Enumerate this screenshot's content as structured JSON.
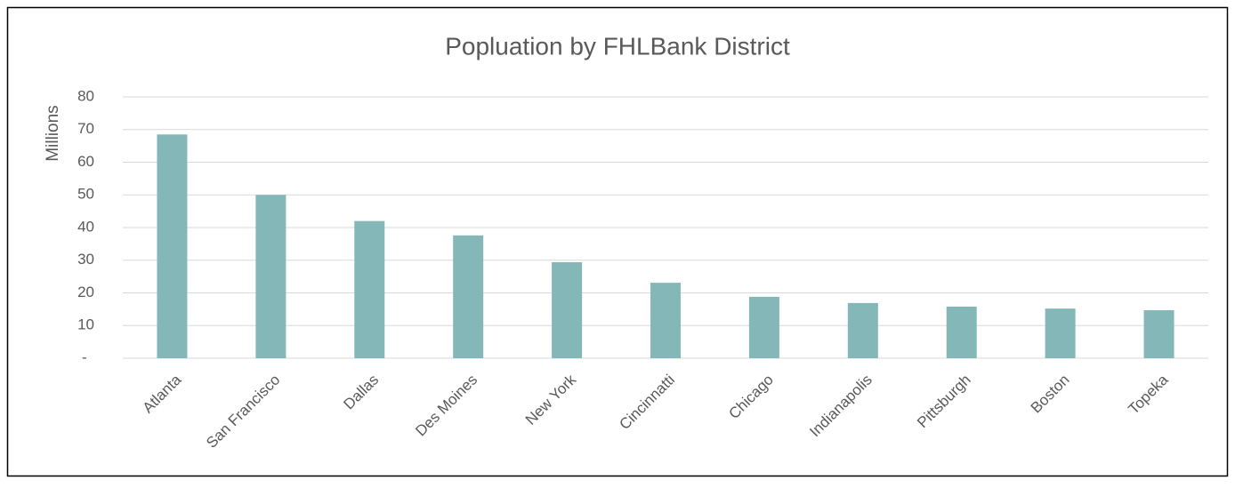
{
  "chart_data": {
    "type": "bar",
    "title": "Popluation by FHLBank District",
    "y_label": "Millions",
    "categories": [
      "Atlanta",
      "San Francisco",
      "Dallas",
      "Des Moines",
      "New York",
      "Cincinnatti",
      "Chicago",
      "Indianapolis",
      "Pittsburgh",
      "Boston",
      "Topeka"
    ],
    "values": [
      68.5,
      50,
      42,
      37.6,
      29.4,
      23.1,
      18.8,
      16.9,
      15.8,
      15.2,
      14.7
    ],
    "color": "#84b8b8",
    "ylim": [
      0,
      80
    ],
    "yticks": [
      {
        "value": 0,
        "label": "-"
      },
      10,
      20,
      30,
      40,
      50,
      60,
      70,
      80
    ],
    "grid": true
  }
}
